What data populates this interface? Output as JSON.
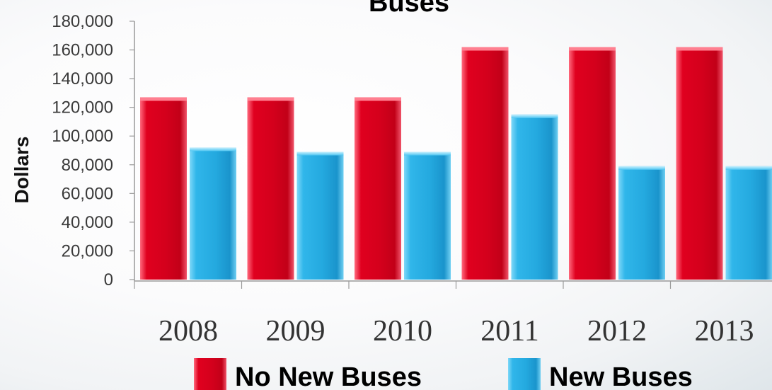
{
  "chart_data": {
    "type": "bar",
    "title": "Buses",
    "xlabel": "",
    "ylabel": "Dollars",
    "categories": [
      "2008",
      "2009",
      "2010",
      "2011",
      "2012",
      "2013"
    ],
    "series": [
      {
        "name": "No New Buses",
        "color": "#e0002a",
        "values": [
          127000,
          127000,
          127000,
          162000,
          162000,
          162000
        ]
      },
      {
        "name": "New Buses",
        "color": "#2ab4ea",
        "values": [
          92000,
          89000,
          89000,
          115000,
          79000,
          79000
        ]
      }
    ],
    "ylim": [
      0,
      180000
    ],
    "yticks": [
      "0",
      "20,000",
      "40,000",
      "60,000",
      "80,000",
      "100,000",
      "120,000",
      "140,000",
      "160,000",
      "180,000"
    ],
    "grid": false,
    "legend_position": "bottom"
  }
}
